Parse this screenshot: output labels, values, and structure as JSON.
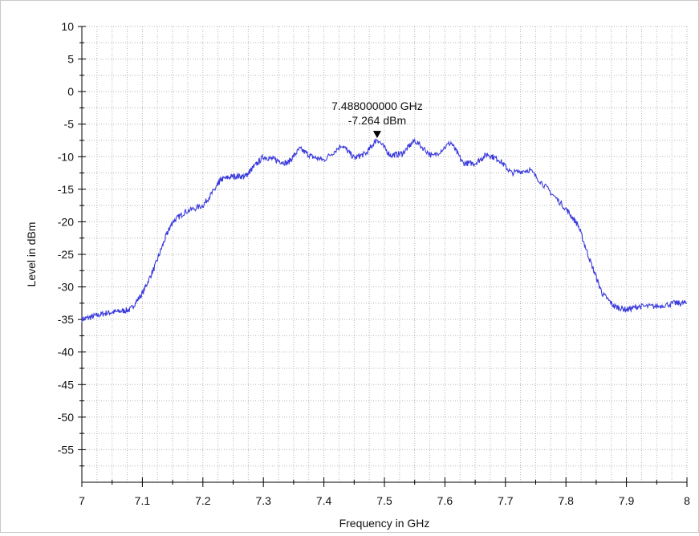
{
  "chart_data": {
    "type": "line",
    "xlabel": "Frequency in GHz",
    "ylabel": "Level in dBm",
    "xlim": [
      7,
      8
    ],
    "ylim": [
      -60,
      10
    ],
    "x_ticks": [
      7,
      7.1,
      7.2,
      7.3,
      7.4,
      7.5,
      7.6,
      7.7,
      7.8,
      7.9,
      8
    ],
    "y_ticks": [
      10,
      5,
      0,
      -5,
      -10,
      -15,
      -20,
      -25,
      -30,
      -35,
      -40,
      -45,
      -50,
      -55
    ],
    "x_tick_labels": [
      "7",
      "7.1",
      "7.2",
      "7.3",
      "7.4",
      "7.5",
      "7.6",
      "7.7",
      "7.8",
      "7.9",
      "8"
    ],
    "y_tick_labels": [
      "10",
      "5",
      "0",
      "-5",
      "-10",
      "-15",
      "-20",
      "-25",
      "-30",
      "-35",
      "-40",
      "-45",
      "-50",
      "-55"
    ],
    "grid": true,
    "line_color": "#3a3adc",
    "series": [
      {
        "x": [
          7.0,
          7.02,
          7.04,
          7.06,
          7.08,
          7.1,
          7.12,
          7.14,
          7.15,
          7.17,
          7.2,
          7.22,
          7.23,
          7.25,
          7.27,
          7.28,
          7.3,
          7.32,
          7.34,
          7.36,
          7.38,
          7.4,
          7.43,
          7.45,
          7.47,
          7.488,
          7.51,
          7.53,
          7.55,
          7.58,
          7.61,
          7.63,
          7.65,
          7.67,
          7.69,
          7.71,
          7.74,
          7.77,
          7.8,
          7.82,
          7.84,
          7.86,
          7.88,
          7.9,
          7.92,
          7.95,
          7.98,
          8.0
        ],
        "y": [
          -35,
          -34.5,
          -34,
          -33.8,
          -33.5,
          -31,
          -27,
          -22,
          -20,
          -18.5,
          -17.5,
          -15,
          -13.5,
          -13,
          -13,
          -12,
          -10,
          -10.5,
          -11,
          -8.8,
          -10,
          -10.5,
          -8.2,
          -10.2,
          -9.5,
          -7.264,
          -9.8,
          -9.5,
          -7.5,
          -10,
          -7.8,
          -11,
          -11,
          -9.6,
          -10.5,
          -12.5,
          -12,
          -15,
          -18,
          -20.5,
          -26,
          -31,
          -33,
          -33.5,
          -33,
          -33,
          -32.5,
          -32.5
        ]
      }
    ],
    "marker": {
      "x": 7.488,
      "y": -7.264,
      "label_freq": "7.488000000 GHz",
      "label_level": "-7.264 dBm"
    }
  }
}
